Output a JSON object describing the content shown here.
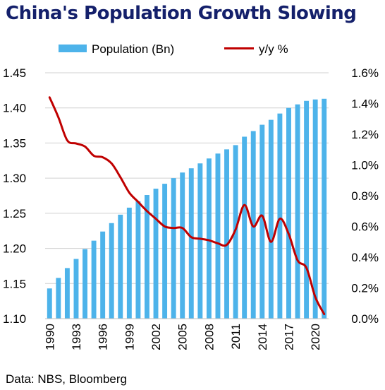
{
  "title": "China's Population Growth Slowing",
  "source": "Data: NBS, Bloomberg",
  "colors": {
    "bars": "#4db3ea",
    "line": "#c00000",
    "title": "#14206b",
    "grid": "#d0d0d0"
  },
  "chart_data": {
    "type": "bar",
    "title": "China's Population Growth Slowing",
    "x": [
      1990,
      1991,
      1992,
      1993,
      1994,
      1995,
      1996,
      1997,
      1998,
      1999,
      2000,
      2001,
      2002,
      2003,
      2004,
      2005,
      2006,
      2007,
      2008,
      2009,
      2010,
      2011,
      2012,
      2013,
      2014,
      2015,
      2016,
      2017,
      2018,
      2019,
      2020,
      2021
    ],
    "x_tick_labels": [
      "1990",
      "1993",
      "1996",
      "1999",
      "2002",
      "2005",
      "2008",
      "2011",
      "2014",
      "2017",
      "2020"
    ],
    "series": [
      {
        "name": "Population (Bn)",
        "type": "bar",
        "axis": "left",
        "values": [
          1.143,
          1.158,
          1.172,
          1.185,
          1.199,
          1.211,
          1.224,
          1.236,
          1.248,
          1.258,
          1.267,
          1.276,
          1.285,
          1.292,
          1.3,
          1.308,
          1.314,
          1.321,
          1.328,
          1.335,
          1.341,
          1.347,
          1.359,
          1.367,
          1.376,
          1.383,
          1.392,
          1.4,
          1.405,
          1.41,
          1.412,
          1.413
        ]
      },
      {
        "name": "y/y %",
        "type": "line",
        "axis": "right",
        "values": [
          1.44,
          1.31,
          1.16,
          1.14,
          1.12,
          1.06,
          1.05,
          1.01,
          0.92,
          0.82,
          0.76,
          0.7,
          0.65,
          0.6,
          0.59,
          0.59,
          0.53,
          0.52,
          0.51,
          0.49,
          0.48,
          0.58,
          0.74,
          0.6,
          0.67,
          0.5,
          0.65,
          0.55,
          0.38,
          0.33,
          0.14,
          0.03
        ]
      }
    ],
    "y_left": {
      "min": 1.1,
      "max": 1.45,
      "ticks": [
        "1.10",
        "1.15",
        "1.20",
        "1.25",
        "1.30",
        "1.35",
        "1.40",
        "1.45"
      ]
    },
    "y_right": {
      "min": 0.0,
      "max": 1.6,
      "ticks": [
        "0.0%",
        "0.2%",
        "0.4%",
        "0.6%",
        "0.8%",
        "1.0%",
        "1.2%",
        "1.4%",
        "1.6%"
      ]
    },
    "legend": {
      "position": "top",
      "entries": [
        "Population (Bn)",
        "y/y %"
      ]
    },
    "grid": true
  }
}
